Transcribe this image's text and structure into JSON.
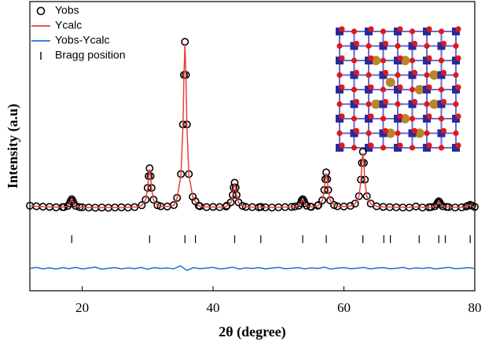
{
  "chart_data": {
    "type": "rietveld",
    "x_label": "2θ (degree)",
    "y_label": "Intensity (a.u)",
    "xlim": [
      12,
      80
    ],
    "ylim": [
      -40,
      100
    ],
    "xticks": [
      20,
      40,
      60,
      80
    ],
    "x": [
      12,
      13,
      14,
      15,
      16,
      17,
      17.2,
      17.8,
      18.1,
      18.25,
      18.4,
      18.55,
      18.7,
      19.0,
      19.6,
      20,
      21,
      22,
      23,
      24,
      25,
      26,
      27,
      28,
      29.1,
      29.7,
      30.0,
      30.15,
      30.3,
      30.45,
      30.6,
      30.9,
      31.5,
      32,
      33,
      34,
      34.5,
      35.1,
      35.4,
      35.55,
      35.7,
      35.85,
      36.0,
      36.3,
      36.9,
      37.3,
      37.8,
      38,
      39,
      40,
      41,
      42,
      42.1,
      42.7,
      43.0,
      43.15,
      43.3,
      43.45,
      43.6,
      43.9,
      44.5,
      45,
      46,
      47,
      47.3,
      48,
      49,
      50,
      51,
      52,
      52.5,
      53.1,
      53.4,
      53.55,
      53.7,
      53.85,
      54.0,
      54.3,
      54.9,
      55,
      56,
      56.1,
      56.7,
      57.0,
      57.15,
      57.3,
      57.45,
      57.6,
      57.9,
      58.5,
      59,
      60,
      61,
      61.7,
      62.3,
      62.6,
      62.75,
      62.9,
      63.05,
      63.2,
      63.5,
      64.1,
      65,
      66,
      67,
      68,
      69,
      70,
      71,
      72,
      73,
      73.3,
      73.9,
      74.2,
      74.35,
      74.5,
      74.65,
      74.8,
      75.1,
      75.7,
      76,
      77,
      78,
      78.7,
      79.0,
      79.3,
      79.6,
      80
    ],
    "series": [
      {
        "name": "Yobs",
        "color": "#000000",
        "style": "circles",
        "values": [
          1.2,
          0.9,
          0.7,
          0.6,
          0.4,
          0.5,
          0.5,
          1.1,
          2.3,
          3.5,
          4.3,
          3.5,
          2.3,
          1.1,
          0.5,
          0.4,
          0.3,
          0.2,
          0.3,
          0.2,
          0.3,
          0.4,
          0.3,
          0.5,
          1.4,
          4.1,
          9.8,
          15.5,
          19.3,
          15.5,
          9.8,
          4.1,
          1.4,
          0.9,
          0.8,
          1.5,
          5.0,
          16.5,
          40.5,
          64.5,
          80.5,
          64.5,
          40.5,
          16.5,
          5.5,
          3.3,
          1.2,
          0.9,
          0.5,
          0.6,
          0.5,
          0.8,
          1.2,
          2.8,
          6.4,
          10,
          12.3,
          10,
          6.4,
          2.8,
          1.1,
          0.6,
          0.5,
          0.4,
          0.6,
          0.4,
          0.3,
          0.4,
          0.5,
          0.6,
          0.8,
          1.2,
          2.4,
          3.6,
          4.3,
          3.6,
          2.4,
          1.2,
          0.7,
          0.6,
          1.2,
          1.5,
          3.8,
          8.8,
          14,
          17.3,
          14,
          8.8,
          3.8,
          1.5,
          0.9,
          0.8,
          1.1,
          2.2,
          5.8,
          13.8,
          21.9,
          27.3,
          21.9,
          13.8,
          5.8,
          2.2,
          0.9,
          0.6,
          0.5,
          0.4,
          0.3,
          0.3,
          0.8,
          0.3,
          0.4,
          0.5,
          0.9,
          1.8,
          2.7,
          3.3,
          2.7,
          1.8,
          0.9,
          0.6,
          0.5,
          0.3,
          0.4,
          0.8,
          1.2,
          1.6,
          1.2,
          0.6
        ]
      },
      {
        "name": "Ycalc",
        "color": "#e8413a",
        "style": "line",
        "values": [
          1.1,
          0.9,
          0.7,
          0.6,
          0.5,
          0.5,
          0.6,
          1.0,
          2.2,
          3.4,
          4.1,
          3.4,
          2.2,
          1.0,
          0.5,
          0.4,
          0.3,
          0.3,
          0.3,
          0.3,
          0.3,
          0.3,
          0.4,
          0.5,
          1.3,
          4.0,
          9.6,
          15.2,
          18.9,
          15.2,
          9.6,
          4.0,
          1.3,
          0.9,
          0.8,
          1.4,
          4.8,
          16.2,
          40.0,
          63.8,
          79.6,
          63.8,
          40.0,
          16.2,
          5.3,
          3.1,
          1.2,
          0.9,
          0.6,
          0.5,
          0.5,
          0.7,
          1.1,
          2.7,
          6.2,
          9.8,
          12.0,
          9.8,
          6.2,
          2.7,
          1.1,
          0.6,
          0.5,
          0.5,
          0.5,
          0.4,
          0.4,
          0.4,
          0.5,
          0.6,
          0.8,
          1.1,
          2.3,
          3.5,
          4.1,
          3.5,
          2.3,
          1.1,
          0.7,
          0.7,
          1.1,
          1.4,
          3.7,
          8.6,
          13.7,
          17.0,
          13.7,
          8.6,
          3.7,
          1.4,
          0.9,
          0.8,
          1.0,
          2.1,
          5.6,
          13.5,
          21.5,
          26.8,
          21.5,
          13.5,
          5.6,
          2.1,
          0.9,
          0.6,
          0.5,
          0.4,
          0.4,
          0.4,
          0.6,
          0.4,
          0.4,
          0.5,
          0.9,
          1.7,
          2.6,
          3.2,
          2.6,
          1.7,
          0.9,
          0.6,
          0.5,
          0.4,
          0.4,
          0.7,
          1.1,
          1.5,
          1.1,
          0.6
        ]
      },
      {
        "name": "Bragg position",
        "color": "#000000",
        "style": "ticks",
        "x": [
          18.4,
          30.3,
          35.7,
          37.3,
          43.3,
          47.3,
          53.7,
          57.3,
          62.9,
          66.1,
          67.1,
          71.5,
          74.5,
          75.5,
          79.3
        ],
        "values": [
          -15,
          -15,
          -15,
          -15,
          -15,
          -15,
          -15,
          -15,
          -15,
          -15,
          -15,
          -15,
          -15,
          -15,
          -15
        ]
      },
      {
        "name": "Yobs-Ycalc",
        "color": "#1f6fd6",
        "style": "line",
        "x": [
          12,
          13,
          14,
          15,
          16,
          17,
          18,
          19,
          20,
          21,
          22,
          23,
          24,
          25,
          26,
          27,
          28,
          29,
          30,
          31,
          32,
          33,
          34,
          35,
          36,
          37,
          38,
          39,
          40,
          41,
          42,
          43,
          44,
          45,
          46,
          47,
          48,
          49,
          50,
          51,
          52,
          53,
          54,
          55,
          56,
          57,
          58,
          59,
          60,
          61,
          62,
          63,
          64,
          65,
          66,
          67,
          68,
          69,
          70,
          71,
          72,
          73,
          74,
          75,
          76,
          77,
          78,
          79,
          80
        ],
        "values": [
          -29.2,
          -28.7,
          -29.4,
          -28.9,
          -29.5,
          -28.8,
          -29.3,
          -28.7,
          -29.4,
          -29.0,
          -28.6,
          -29.5,
          -29.1,
          -28.8,
          -29.4,
          -28.9,
          -29.3,
          -28.7,
          -29.6,
          -28.8,
          -29.2,
          -28.9,
          -29.4,
          -27.9,
          -30.1,
          -28.8,
          -29.3,
          -29.0,
          -28.7,
          -29.4,
          -29.1,
          -28.6,
          -29.5,
          -28.9,
          -29.2,
          -28.8,
          -29.4,
          -29.0,
          -28.7,
          -29.3,
          -29.1,
          -28.8,
          -29.4,
          -28.9,
          -29.2,
          -28.6,
          -29.5,
          -29.0,
          -28.8,
          -29.3,
          -29.1,
          -28.7,
          -29.4,
          -29.0,
          -28.8,
          -29.3,
          -29.1,
          -28.7,
          -29.4,
          -28.9,
          -29.2,
          -28.8,
          -29.4,
          -29.0,
          -28.7,
          -29.3,
          -29.1,
          -28.8,
          -29.2
        ]
      }
    ]
  }
}
